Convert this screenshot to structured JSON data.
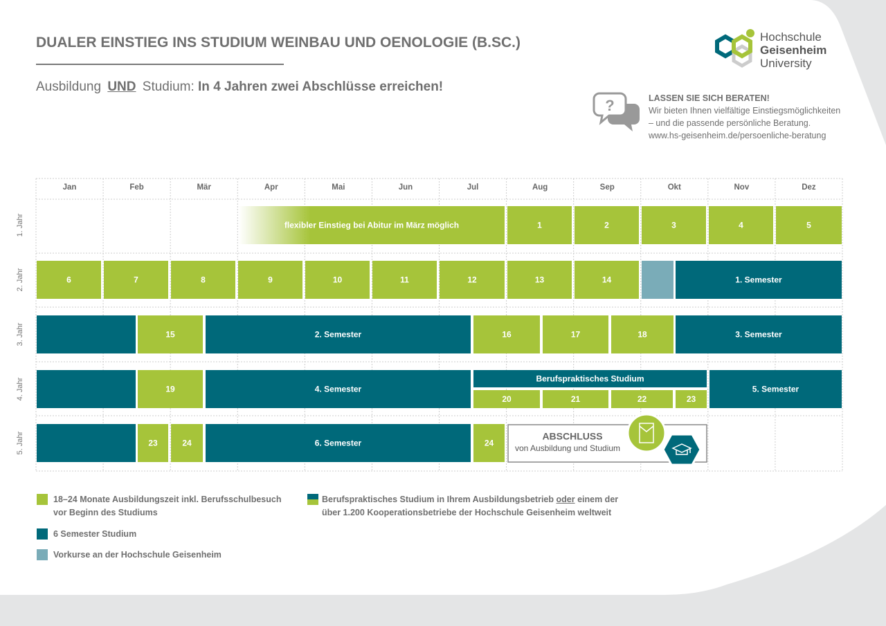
{
  "header": {
    "title": "DUALER EINSTIEG INS STUDIUM WEINBAU UND OENOLOGIE (B.SC.)",
    "subtitle": {
      "lead": "Ausbildung",
      "emphasis": "UND",
      "tail": "Studium:",
      "claim": "In 4 Jahren zwei Abschlüsse erreichen!"
    }
  },
  "logo": {
    "line1": "Hochschule",
    "line2": "Geisenheim",
    "line3": "University"
  },
  "advice": {
    "heading": "LASSEN SIE SICH BERATEN!",
    "lines": [
      "Wir bieten Ihnen vielfältige Einstiegsmöglichkeiten",
      "– und die passende persönliche Beratung.",
      "www.hs-geisenheim.de/persoenliche-beratung"
    ]
  },
  "calendar": {
    "months": [
      "Jan",
      "Feb",
      "Mär",
      "Apr",
      "Mai",
      "Jun",
      "Jul",
      "Aug",
      "Sep",
      "Okt",
      "Nov",
      "Dez"
    ],
    "years": [
      {
        "label": "1. Jahr",
        "blocks": [
          {
            "label": "flexibler Einstieg bei Abitur im März möglich",
            "kind": "entry"
          },
          {
            "label": 1,
            "kind": "training"
          },
          {
            "label": 2,
            "kind": "training"
          },
          {
            "label": 3,
            "kind": "training"
          },
          {
            "label": 4,
            "kind": "training"
          },
          {
            "label": 5,
            "kind": "training"
          }
        ]
      },
      {
        "label": "2. Jahr",
        "blocks": [
          {
            "label": 6,
            "kind": "training"
          },
          {
            "label": 7,
            "kind": "training"
          },
          {
            "label": 8,
            "kind": "training"
          },
          {
            "label": 9,
            "kind": "training"
          },
          {
            "label": 10,
            "kind": "training"
          },
          {
            "label": 11,
            "kind": "training"
          },
          {
            "label": 12,
            "kind": "training"
          },
          {
            "label": 13,
            "kind": "training"
          },
          {
            "label": 14,
            "kind": "training"
          },
          {
            "kind": "prep"
          },
          {
            "label": "1. Semester",
            "kind": "study"
          }
        ]
      },
      {
        "label": "3. Jahr",
        "blocks": [
          {
            "kind": "study"
          },
          {
            "label": 15,
            "kind": "training"
          },
          {
            "label": "2. Semester",
            "kind": "study"
          },
          {
            "label": 16,
            "kind": "training"
          },
          {
            "label": 17,
            "kind": "training"
          },
          {
            "label": 18,
            "kind": "training"
          },
          {
            "label": "3. Semester",
            "kind": "study"
          }
        ]
      },
      {
        "label": "4. Jahr",
        "blocks": [
          {
            "kind": "study"
          },
          {
            "label": 19,
            "kind": "training"
          },
          {
            "label": "4. Semester",
            "kind": "study"
          },
          {
            "label": "Berufspraktisches Studium",
            "kind": "study"
          },
          {
            "label": 20,
            "kind": "training"
          },
          {
            "label": 21,
            "kind": "training"
          },
          {
            "label": 22,
            "kind": "training"
          },
          {
            "label": 23,
            "kind": "training"
          },
          {
            "label": "5. Semester",
            "kind": "study"
          }
        ]
      },
      {
        "label": "5. Jahr",
        "blocks": [
          {
            "kind": "study"
          },
          {
            "label": 23,
            "kind": "training"
          },
          {
            "label": 24,
            "kind": "training"
          },
          {
            "label": "6. Semester",
            "kind": "study"
          },
          {
            "label": 24,
            "kind": "training"
          }
        ]
      }
    ]
  },
  "completion": {
    "title": "ABSCHLUSS",
    "subtitle": "von Ausbildung und Studium"
  },
  "legend": {
    "training": [
      "18–24 Monate Ausbildungszeit inkl. Berufsschulbesuch",
      "vor Beginn des Studiums"
    ],
    "study": "6 Semester Studium",
    "prep": "Vorkurse an der Hochschule Geisenheim",
    "practice": {
      "lead": "Berufspraktisches Studium in Ihrem Ausbildungsbetrieb",
      "emphasis": "oder",
      "tail": "einem der",
      "line2": "über 1.200 Kooperationsbetriebe der Hochschule Geisenheim weltweit"
    }
  }
}
